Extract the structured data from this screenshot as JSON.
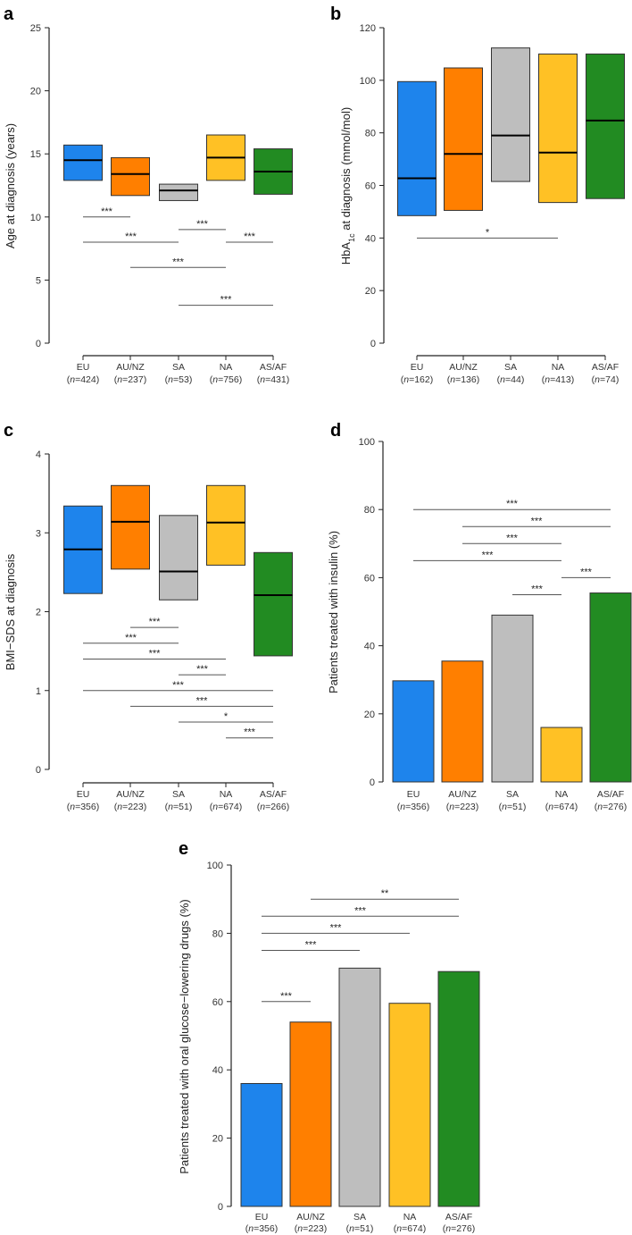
{
  "colors": {
    "EU": "#1E84EC",
    "AU/NZ": "#FF7F00",
    "SA": "#BEBEBE",
    "NA": "#FFC125",
    "AS/AF": "#228B22"
  },
  "chart_data": [
    {
      "id": "a",
      "panel_label": "a",
      "type": "box",
      "ylabel": [
        "Age at diagnosis (years)"
      ],
      "ylim": [
        0,
        25
      ],
      "yticks": [
        0,
        5,
        10,
        15,
        20,
        25
      ],
      "categories": [
        "EU",
        "AU/NZ",
        "SA",
        "NA",
        "AS/AF"
      ],
      "n": [
        "424",
        "237",
        "53",
        "756",
        "431"
      ],
      "values": [
        {
          "lower": 12.9,
          "median": 14.5,
          "upper": 15.7
        },
        {
          "lower": 11.7,
          "median": 13.4,
          "upper": 14.7
        },
        {
          "lower": 11.3,
          "median": 12.1,
          "upper": 12.6
        },
        {
          "lower": 12.9,
          "median": 14.7,
          "upper": 16.5
        },
        {
          "lower": 11.8,
          "median": 13.6,
          "upper": 15.4
        }
      ],
      "comparisons": [
        {
          "from": 0,
          "to": 1,
          "y": 10,
          "label": "***"
        },
        {
          "from": 2,
          "to": 3,
          "y": 9,
          "label": "***"
        },
        {
          "from": 0,
          "to": 2,
          "y": 8,
          "label": "***"
        },
        {
          "from": 3,
          "to": 4,
          "y": 8,
          "label": "***"
        },
        {
          "from": 1,
          "to": 3,
          "y": 6,
          "label": "***"
        },
        {
          "from": 2,
          "to": 4,
          "y": 3,
          "label": "***"
        }
      ]
    },
    {
      "id": "b",
      "panel_label": "b",
      "type": "box",
      "ylabel": [
        "HbA",
        "1c",
        " at diagnosis (mmol/mol)"
      ],
      "ylim": [
        0,
        120
      ],
      "yticks": [
        0,
        20,
        40,
        60,
        80,
        100,
        120
      ],
      "categories": [
        "EU",
        "AU/NZ",
        "SA",
        "NA",
        "AS/AF"
      ],
      "n": [
        "162",
        "136",
        "44",
        "413",
        "74"
      ],
      "values": [
        {
          "lower": 48.5,
          "median": 62.7,
          "upper": 99.5
        },
        {
          "lower": 50.5,
          "median": 72,
          "upper": 104.7
        },
        {
          "lower": 61.5,
          "median": 79,
          "upper": 112.3
        },
        {
          "lower": 53.5,
          "median": 72.5,
          "upper": 110
        },
        {
          "lower": 55,
          "median": 84.7,
          "upper": 110
        }
      ],
      "comparisons": [
        {
          "from": 0,
          "to": 3,
          "y": 40,
          "label": "*"
        }
      ]
    },
    {
      "id": "c",
      "panel_label": "c",
      "type": "box",
      "ylabel": [
        "BMI−SDS at diagnosis"
      ],
      "ylim": [
        0,
        4
      ],
      "yticks": [
        0,
        1,
        2,
        3,
        4
      ],
      "categories": [
        "EU",
        "AU/NZ",
        "SA",
        "NA",
        "AS/AF"
      ],
      "n": [
        "356",
        "223",
        "51",
        "674",
        "266"
      ],
      "values": [
        {
          "lower": 2.23,
          "median": 2.79,
          "upper": 3.34
        },
        {
          "lower": 2.54,
          "median": 3.14,
          "upper": 3.6
        },
        {
          "lower": 2.15,
          "median": 2.51,
          "upper": 3.22
        },
        {
          "lower": 2.59,
          "median": 3.13,
          "upper": 3.6
        },
        {
          "lower": 1.44,
          "median": 2.21,
          "upper": 2.75
        }
      ],
      "comparisons": [
        {
          "from": 1,
          "to": 2,
          "y": 1.8,
          "label": "***"
        },
        {
          "from": 0,
          "to": 2,
          "y": 1.6,
          "label": "***"
        },
        {
          "from": 0,
          "to": 3,
          "y": 1.4,
          "label": "***"
        },
        {
          "from": 2,
          "to": 3,
          "y": 1.2,
          "label": "***"
        },
        {
          "from": 0,
          "to": 4,
          "y": 1.0,
          "label": "***"
        },
        {
          "from": 1,
          "to": 4,
          "y": 0.8,
          "label": "***"
        },
        {
          "from": 2,
          "to": 4,
          "y": 0.6,
          "label": "*"
        },
        {
          "from": 3,
          "to": 4,
          "y": 0.4,
          "label": "***"
        }
      ]
    },
    {
      "id": "d",
      "panel_label": "d",
      "type": "bar",
      "ylabel": [
        "Patients treated with insulin (%)"
      ],
      "ylim": [
        0,
        100
      ],
      "yticks": [
        0,
        20,
        40,
        60,
        80,
        100
      ],
      "categories": [
        "EU",
        "AU/NZ",
        "SA",
        "NA",
        "AS/AF"
      ],
      "n": [
        "356",
        "223",
        "51",
        "674",
        "276"
      ],
      "values": [
        29.7,
        35.5,
        49,
        16,
        55.5
      ],
      "comparisons": [
        {
          "from": 0,
          "to": 4,
          "y": 80,
          "label": "***"
        },
        {
          "from": 1,
          "to": 4,
          "y": 75,
          "label": "***"
        },
        {
          "from": 1,
          "to": 3,
          "y": 70,
          "label": "***"
        },
        {
          "from": 0,
          "to": 3,
          "y": 65,
          "label": "***"
        },
        {
          "from": 3,
          "to": 4,
          "y": 60,
          "label": "***"
        },
        {
          "from": 2,
          "to": 3,
          "y": 55,
          "label": "***"
        }
      ]
    },
    {
      "id": "e",
      "panel_label": "e",
      "type": "bar",
      "ylabel": [
        "Patients treated with oral glucose−lowering drugs (%)"
      ],
      "ylim": [
        0,
        100
      ],
      "yticks": [
        0,
        20,
        40,
        60,
        80,
        100
      ],
      "categories": [
        "EU",
        "AU/NZ",
        "SA",
        "NA",
        "AS/AF"
      ],
      "n": [
        "356",
        "223",
        "51",
        "674",
        "276"
      ],
      "values": [
        36,
        54,
        69.8,
        59.5,
        68.8
      ],
      "comparisons": [
        {
          "from": 1,
          "to": 4,
          "y": 90,
          "label": "**"
        },
        {
          "from": 0,
          "to": 4,
          "y": 85,
          "label": "***"
        },
        {
          "from": 0,
          "to": 3,
          "y": 80,
          "label": "***"
        },
        {
          "from": 0,
          "to": 2,
          "y": 75,
          "label": "***"
        },
        {
          "from": 0,
          "to": 1,
          "y": 60,
          "label": "***"
        }
      ]
    }
  ]
}
